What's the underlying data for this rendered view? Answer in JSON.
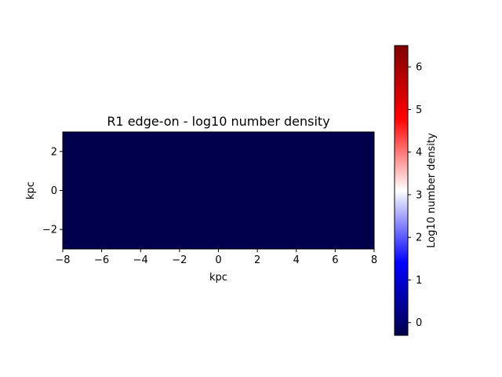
{
  "chart_data": {
    "type": "heatmap",
    "title": "R1 edge-on - log10 number density",
    "xlabel": "kpc",
    "ylabel": "kpc",
    "xlim": [
      -8,
      8
    ],
    "ylim": [
      -3,
      3
    ],
    "x_ticks": [
      -8,
      -6,
      -4,
      -2,
      0,
      2,
      4,
      6,
      8
    ],
    "y_ticks": [
      -2,
      0,
      2
    ],
    "x_tick_labels": [
      "−8",
      "−6",
      "−4",
      "−2",
      "0",
      "2",
      "4",
      "6",
      "8"
    ],
    "y_tick_labels": [
      "−2",
      "0",
      "2"
    ],
    "field_value": -0.3,
    "field_color": "#00004c",
    "colormap": "seismic",
    "colorbar": {
      "label": "Log10 number density",
      "range": [
        -0.3,
        6.5
      ],
      "ticks": [
        0,
        1,
        2,
        3,
        4,
        5,
        6
      ],
      "tick_labels": [
        "0",
        "1",
        "2",
        "3",
        "4",
        "5",
        "6"
      ],
      "stops": [
        {
          "offset": 0.0,
          "color": "#00004c"
        },
        {
          "offset": 0.25,
          "color": "#0000ff"
        },
        {
          "offset": 0.5,
          "color": "#ffffff"
        },
        {
          "offset": 0.75,
          "color": "#ff0000"
        },
        {
          "offset": 1.0,
          "color": "#7f0000"
        }
      ]
    },
    "grid": false
  }
}
